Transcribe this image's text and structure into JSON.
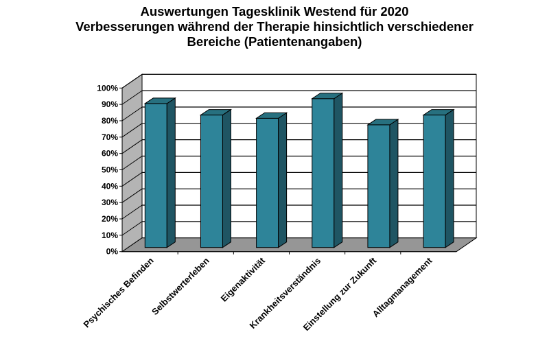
{
  "chart_data": {
    "type": "bar",
    "title": [
      "Auswertungen Tagesklinik Westend für 2020",
      "Verbesserungen während der Therapie hinsichtlich verschiedener",
      "Bereiche (Patientenangaben)"
    ],
    "categories": [
      "Psychisches Befinden",
      "Selbstwerterleben",
      "Eigenaktivität",
      "Krankheitsverständnis",
      "Einstellung zur Zukunft",
      "Alltagmanagement"
    ],
    "values": [
      88,
      81,
      79,
      91,
      75,
      81
    ],
    "unit": "%",
    "ylim": [
      0,
      100
    ],
    "yticks": [
      "0%",
      "10%",
      "20%",
      "30%",
      "40%",
      "50%",
      "60%",
      "70%",
      "80%",
      "90%",
      "100%"
    ],
    "grid": true,
    "style": "3d",
    "colors": {
      "bar_front": "#2e8499",
      "bar_side": "#1f5563",
      "bar_top": "#27707f",
      "floor": "#969696",
      "side_wall": "#b4b4b4"
    }
  }
}
